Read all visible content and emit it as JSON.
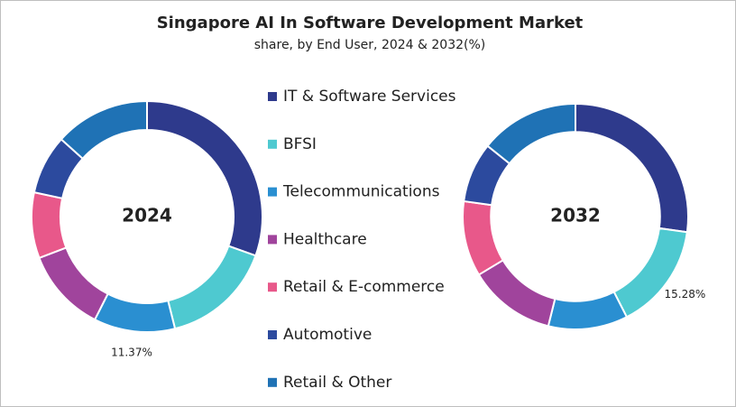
{
  "chart_data": [
    {
      "type": "donut",
      "title": "Singapore AI In Software Development Market",
      "subtitle": "share, by End User, 2024 & 2032(%)",
      "center_label": "2024",
      "categories": [
        "IT & Software Services",
        "BFSI",
        "Telecommunications",
        "Healthcare",
        "Retail & E-commerce",
        "Automotive",
        "Retail & Other"
      ],
      "values": [
        30.5,
        15.6,
        11.37,
        11.7,
        9.2,
        8.3,
        13.33
      ],
      "value_labels": [
        null,
        null,
        "11.37%",
        null,
        null,
        null,
        null
      ],
      "colors": [
        "#2e3a8c",
        "#4ec9d0",
        "#2a8fd1",
        "#a0449c",
        "#e8588a",
        "#2c4a9e",
        "#1f72b5"
      ]
    },
    {
      "type": "donut",
      "center_label": "2032",
      "categories": [
        "IT & Software Services",
        "BFSI",
        "Telecommunications",
        "Healthcare",
        "Retail & E-commerce",
        "Automotive",
        "Retail & Other"
      ],
      "values": [
        27.2,
        15.28,
        11.4,
        12.5,
        10.8,
        8.6,
        14.22
      ],
      "value_labels": [
        null,
        "15.28%",
        null,
        null,
        null,
        null,
        null
      ],
      "colors": [
        "#2e3a8c",
        "#4ec9d0",
        "#2a8fd1",
        "#a0449c",
        "#e8588a",
        "#2c4a9e",
        "#1f72b5"
      ]
    }
  ]
}
